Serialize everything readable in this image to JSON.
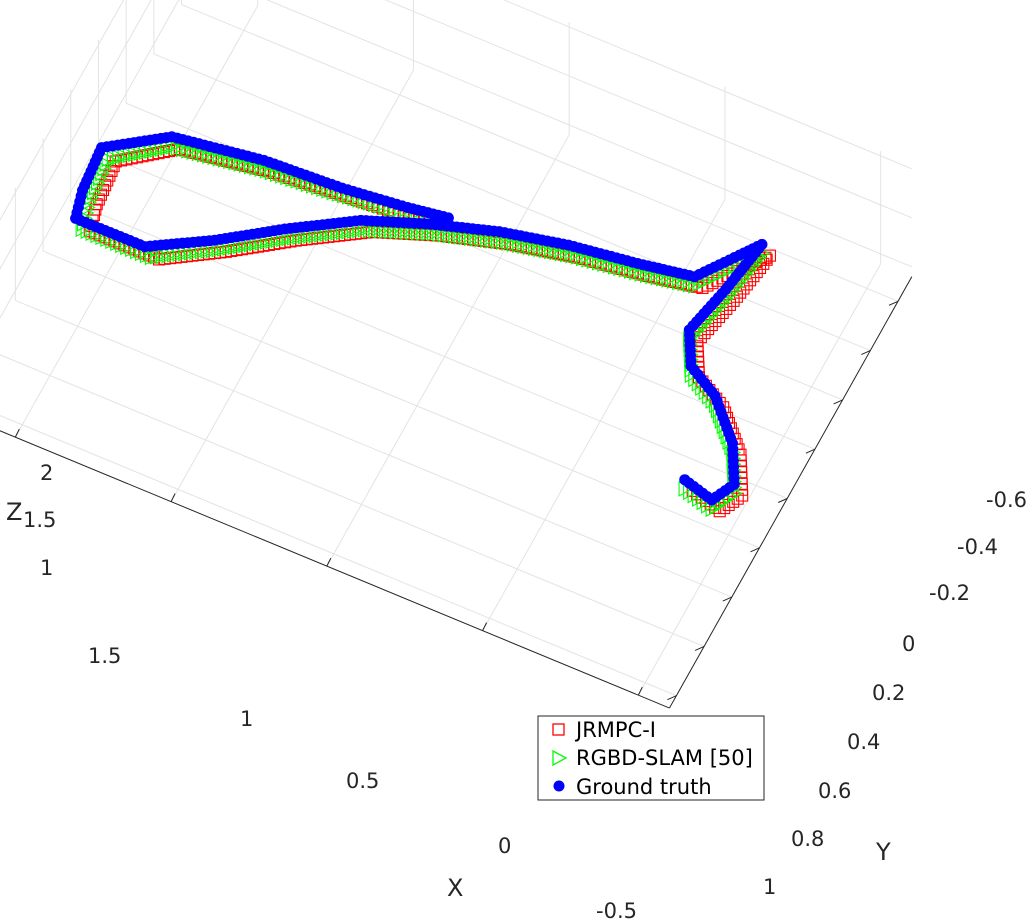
{
  "chart_data": {
    "type": "scatter",
    "projection": "3d",
    "grid": true,
    "legend_position": "bottom-right",
    "xlabel": "X",
    "ylabel": "Y",
    "zlabel": "Z",
    "x_ticks": [
      "1.5",
      "1",
      "0.5",
      "0",
      "-0.5"
    ],
    "y_ticks": [
      "-0.6",
      "-0.4",
      "-0.2",
      "0",
      "0.2",
      "0.4",
      "0.6",
      "0.8",
      "1"
    ],
    "z_ticks": [
      "2",
      "1.5",
      "1"
    ],
    "xlim": [
      -0.6,
      1.7
    ],
    "ylim": [
      -0.7,
      1.05
    ],
    "zlim": [
      0.9,
      2.05
    ],
    "series": [
      {
        "name": "JRMPC-I",
        "marker": "square-open",
        "color": "#ff0000",
        "points": [
          [
            0.65,
            -0.1,
            1.3
          ],
          [
            0.75,
            -0.03,
            1.45
          ],
          [
            0.9,
            0.05,
            1.65
          ],
          [
            1.1,
            0.12,
            1.8
          ],
          [
            1.35,
            0.2,
            1.9
          ],
          [
            1.52,
            0.28,
            1.75
          ],
          [
            1.55,
            0.35,
            1.45
          ],
          [
            1.55,
            0.4,
            1.3
          ],
          [
            1.35,
            0.35,
            1.15
          ],
          [
            1.18,
            0.25,
            1.2
          ],
          [
            1.0,
            0.15,
            1.3
          ],
          [
            0.8,
            0.05,
            1.4
          ],
          [
            0.6,
            0.0,
            1.5
          ],
          [
            0.4,
            -0.05,
            1.55
          ],
          [
            0.2,
            -0.1,
            1.55
          ],
          [
            0.0,
            -0.15,
            1.5
          ],
          [
            -0.15,
            -0.2,
            1.45
          ],
          [
            -0.25,
            -0.3,
            1.55
          ],
          [
            -0.3,
            -0.35,
            1.6
          ],
          [
            -0.25,
            -0.2,
            1.45
          ],
          [
            -0.2,
            -0.05,
            1.35
          ],
          [
            -0.25,
            0.05,
            1.3
          ],
          [
            -0.35,
            0.1,
            1.25
          ],
          [
            -0.45,
            0.2,
            1.15
          ],
          [
            -0.5,
            0.3,
            1.05
          ],
          [
            -0.45,
            0.35,
            0.95
          ],
          [
            -0.35,
            0.32,
            0.95
          ]
        ]
      },
      {
        "name": "RGBD-SLAM [50]",
        "marker": "triangle-right-open",
        "color": "#00ff00",
        "points": [
          [
            0.65,
            -0.1,
            1.32
          ],
          [
            0.76,
            -0.03,
            1.47
          ],
          [
            0.92,
            0.06,
            1.67
          ],
          [
            1.12,
            0.13,
            1.82
          ],
          [
            1.37,
            0.21,
            1.92
          ],
          [
            1.54,
            0.29,
            1.77
          ],
          [
            1.57,
            0.36,
            1.47
          ],
          [
            1.57,
            0.41,
            1.32
          ],
          [
            1.37,
            0.36,
            1.17
          ],
          [
            1.2,
            0.26,
            1.22
          ],
          [
            1.02,
            0.16,
            1.32
          ],
          [
            0.82,
            0.06,
            1.42
          ],
          [
            0.62,
            0.01,
            1.52
          ],
          [
            0.42,
            -0.04,
            1.57
          ],
          [
            0.22,
            -0.09,
            1.57
          ],
          [
            0.02,
            -0.14,
            1.52
          ],
          [
            -0.13,
            -0.19,
            1.47
          ],
          [
            -0.23,
            -0.29,
            1.57
          ],
          [
            -0.28,
            -0.34,
            1.62
          ],
          [
            -0.23,
            -0.19,
            1.47
          ],
          [
            -0.18,
            -0.04,
            1.37
          ],
          [
            -0.23,
            0.06,
            1.32
          ],
          [
            -0.33,
            0.11,
            1.27
          ],
          [
            -0.43,
            0.21,
            1.17
          ],
          [
            -0.48,
            0.31,
            1.07
          ],
          [
            -0.43,
            0.36,
            0.97
          ],
          [
            -0.33,
            0.33,
            0.97
          ]
        ]
      },
      {
        "name": "Ground truth",
        "marker": "circle-filled",
        "color": "#0000ff",
        "points": [
          [
            0.63,
            -0.12,
            1.34
          ],
          [
            0.73,
            -0.05,
            1.49
          ],
          [
            0.9,
            0.04,
            1.69
          ],
          [
            1.12,
            0.11,
            1.86
          ],
          [
            1.38,
            0.19,
            1.96
          ],
          [
            1.57,
            0.27,
            1.8
          ],
          [
            1.6,
            0.34,
            1.5
          ],
          [
            1.6,
            0.39,
            1.34
          ],
          [
            1.4,
            0.34,
            1.19
          ],
          [
            1.22,
            0.24,
            1.24
          ],
          [
            1.04,
            0.14,
            1.34
          ],
          [
            0.84,
            0.04,
            1.44
          ],
          [
            0.64,
            -0.01,
            1.54
          ],
          [
            0.44,
            -0.06,
            1.6
          ],
          [
            0.24,
            -0.11,
            1.6
          ],
          [
            0.04,
            -0.16,
            1.55
          ],
          [
            -0.12,
            -0.21,
            1.5
          ],
          [
            -0.22,
            -0.31,
            1.6
          ],
          [
            -0.27,
            -0.36,
            1.65
          ],
          [
            -0.22,
            -0.21,
            1.5
          ],
          [
            -0.17,
            -0.06,
            1.4
          ],
          [
            -0.22,
            0.04,
            1.35
          ],
          [
            -0.32,
            0.09,
            1.3
          ],
          [
            -0.42,
            0.19,
            1.2
          ],
          [
            -0.47,
            0.29,
            1.1
          ],
          [
            -0.42,
            0.34,
            1.0
          ],
          [
            -0.32,
            0.31,
            1.0
          ]
        ]
      }
    ]
  }
}
